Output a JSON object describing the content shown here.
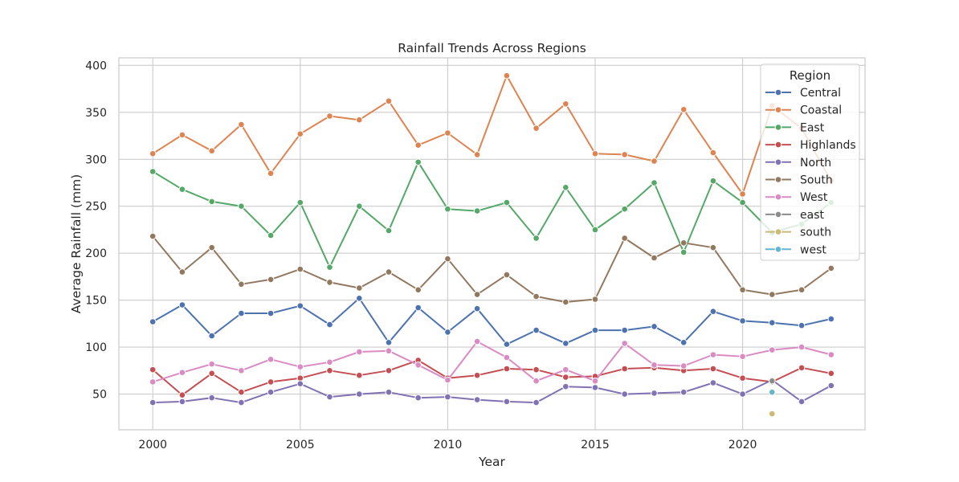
{
  "chart_data": {
    "type": "line",
    "title": "Rainfall Trends Across Regions",
    "xlabel": "Year",
    "ylabel": "Average Rainfall (mm)",
    "xlim": [
      1998.85,
      2024.15
    ],
    "ylim": [
      12,
      408
    ],
    "xticks": [
      2000,
      2005,
      2010,
      2015,
      2020
    ],
    "yticks": [
      50,
      100,
      150,
      200,
      250,
      300,
      350,
      400
    ],
    "grid": true,
    "legend": {
      "title": "Region",
      "position": "top-right"
    },
    "series": [
      {
        "name": "Central",
        "color": "#4c72b0",
        "points": [
          [
            2000,
            127
          ],
          [
            2001,
            145
          ],
          [
            2002,
            112
          ],
          [
            2003,
            136
          ],
          [
            2004,
            136
          ],
          [
            2005,
            144
          ],
          [
            2006,
            124
          ],
          [
            2007,
            152
          ],
          [
            2008,
            105
          ],
          [
            2009,
            142
          ],
          [
            2010,
            116
          ],
          [
            2011,
            141
          ],
          [
            2012,
            103
          ],
          [
            2013,
            118
          ],
          [
            2014,
            104
          ],
          [
            2015,
            118
          ],
          [
            2016,
            118
          ],
          [
            2017,
            122
          ],
          [
            2018,
            105
          ],
          [
            2019,
            138
          ],
          [
            2020,
            128
          ],
          [
            2021,
            126
          ],
          [
            2022,
            123
          ],
          [
            2023,
            130
          ]
        ]
      },
      {
        "name": "Coastal",
        "color": "#dd8452",
        "points": [
          [
            2000,
            306
          ],
          [
            2001,
            326
          ],
          [
            2002,
            309
          ],
          [
            2003,
            337
          ],
          [
            2004,
            285
          ],
          [
            2005,
            327
          ],
          [
            2006,
            346
          ],
          [
            2007,
            342
          ],
          [
            2008,
            362
          ],
          [
            2009,
            315
          ],
          [
            2010,
            328
          ],
          [
            2011,
            305
          ],
          [
            2012,
            389
          ],
          [
            2013,
            333
          ],
          [
            2014,
            359
          ],
          [
            2015,
            306
          ],
          [
            2016,
            305
          ],
          [
            2017,
            298
          ],
          [
            2018,
            353
          ],
          [
            2019,
            307
          ],
          [
            2020,
            263
          ],
          [
            2021,
            357
          ],
          [
            2022,
            333
          ],
          [
            2023,
            277
          ]
        ]
      },
      {
        "name": "East",
        "color": "#55a868",
        "points": [
          [
            2000,
            287
          ],
          [
            2001,
            268
          ],
          [
            2002,
            255
          ],
          [
            2003,
            250
          ],
          [
            2004,
            219
          ],
          [
            2005,
            254
          ],
          [
            2006,
            185
          ],
          [
            2007,
            250
          ],
          [
            2008,
            224
          ],
          [
            2009,
            297
          ],
          [
            2010,
            247
          ],
          [
            2011,
            245
          ],
          [
            2012,
            254
          ],
          [
            2013,
            216
          ],
          [
            2014,
            270
          ],
          [
            2015,
            225
          ],
          [
            2016,
            247
          ],
          [
            2017,
            275
          ],
          [
            2018,
            201
          ],
          [
            2019,
            277
          ],
          [
            2020,
            254
          ],
          [
            2021,
            222
          ],
          [
            2022,
            231
          ],
          [
            2023,
            254
          ]
        ]
      },
      {
        "name": "Highlands",
        "color": "#c44e52",
        "points": [
          [
            2000,
            76
          ],
          [
            2001,
            49
          ],
          [
            2002,
            72
          ],
          [
            2003,
            52
          ],
          [
            2004,
            63
          ],
          [
            2005,
            67
          ],
          [
            2006,
            75
          ],
          [
            2007,
            70
          ],
          [
            2008,
            75
          ],
          [
            2009,
            86
          ],
          [
            2010,
            67
          ],
          [
            2011,
            70
          ],
          [
            2012,
            77
          ],
          [
            2013,
            76
          ],
          [
            2014,
            68
          ],
          [
            2015,
            69
          ],
          [
            2016,
            77
          ],
          [
            2017,
            78
          ],
          [
            2018,
            75
          ],
          [
            2019,
            77
          ],
          [
            2020,
            67
          ],
          [
            2021,
            63
          ],
          [
            2022,
            78
          ],
          [
            2023,
            72
          ]
        ]
      },
      {
        "name": "North",
        "color": "#8172b3",
        "points": [
          [
            2000,
            41
          ],
          [
            2001,
            42
          ],
          [
            2002,
            46
          ],
          [
            2003,
            41
          ],
          [
            2004,
            52
          ],
          [
            2005,
            61
          ],
          [
            2006,
            47
          ],
          [
            2007,
            50
          ],
          [
            2008,
            52
          ],
          [
            2009,
            46
          ],
          [
            2010,
            47
          ],
          [
            2011,
            44
          ],
          [
            2012,
            42
          ],
          [
            2013,
            41
          ],
          [
            2014,
            58
          ],
          [
            2015,
            57
          ],
          [
            2016,
            50
          ],
          [
            2017,
            51
          ],
          [
            2018,
            52
          ],
          [
            2019,
            62
          ],
          [
            2020,
            50
          ],
          [
            2021,
            65
          ],
          [
            2022,
            42
          ],
          [
            2023,
            59
          ]
        ]
      },
      {
        "name": "South",
        "color": "#937860",
        "points": [
          [
            2000,
            218
          ],
          [
            2001,
            180
          ],
          [
            2002,
            206
          ],
          [
            2003,
            167
          ],
          [
            2004,
            172
          ],
          [
            2005,
            183
          ],
          [
            2006,
            169
          ],
          [
            2007,
            163
          ],
          [
            2008,
            180
          ],
          [
            2009,
            161
          ],
          [
            2010,
            194
          ],
          [
            2011,
            156
          ],
          [
            2012,
            177
          ],
          [
            2013,
            154
          ],
          [
            2014,
            148
          ],
          [
            2015,
            151
          ],
          [
            2016,
            216
          ],
          [
            2017,
            195
          ],
          [
            2018,
            211
          ],
          [
            2019,
            206
          ],
          [
            2020,
            161
          ],
          [
            2021,
            156
          ],
          [
            2022,
            161
          ],
          [
            2023,
            184
          ]
        ]
      },
      {
        "name": "West",
        "color": "#da8bc3",
        "points": [
          [
            2000,
            63
          ],
          [
            2001,
            73
          ],
          [
            2002,
            82
          ],
          [
            2003,
            75
          ],
          [
            2004,
            87
          ],
          [
            2005,
            79
          ],
          [
            2006,
            84
          ],
          [
            2007,
            95
          ],
          [
            2008,
            96
          ],
          [
            2009,
            81
          ],
          [
            2010,
            65
          ],
          [
            2011,
            106
          ],
          [
            2012,
            89
          ],
          [
            2013,
            64
          ],
          [
            2014,
            76
          ],
          [
            2015,
            64
          ],
          [
            2016,
            104
          ],
          [
            2017,
            81
          ],
          [
            2018,
            80
          ],
          [
            2019,
            92
          ],
          [
            2020,
            90
          ],
          [
            2021,
            97
          ],
          [
            2022,
            100
          ],
          [
            2023,
            92
          ]
        ]
      },
      {
        "name": "east",
        "color": "#8c8c8c",
        "points": [
          [
            2021,
            64
          ]
        ]
      },
      {
        "name": "south",
        "color": "#ccb974",
        "points": [
          [
            2021,
            29
          ]
        ]
      },
      {
        "name": "west",
        "color": "#64b5cd",
        "points": [
          [
            2021,
            52
          ]
        ]
      }
    ]
  }
}
